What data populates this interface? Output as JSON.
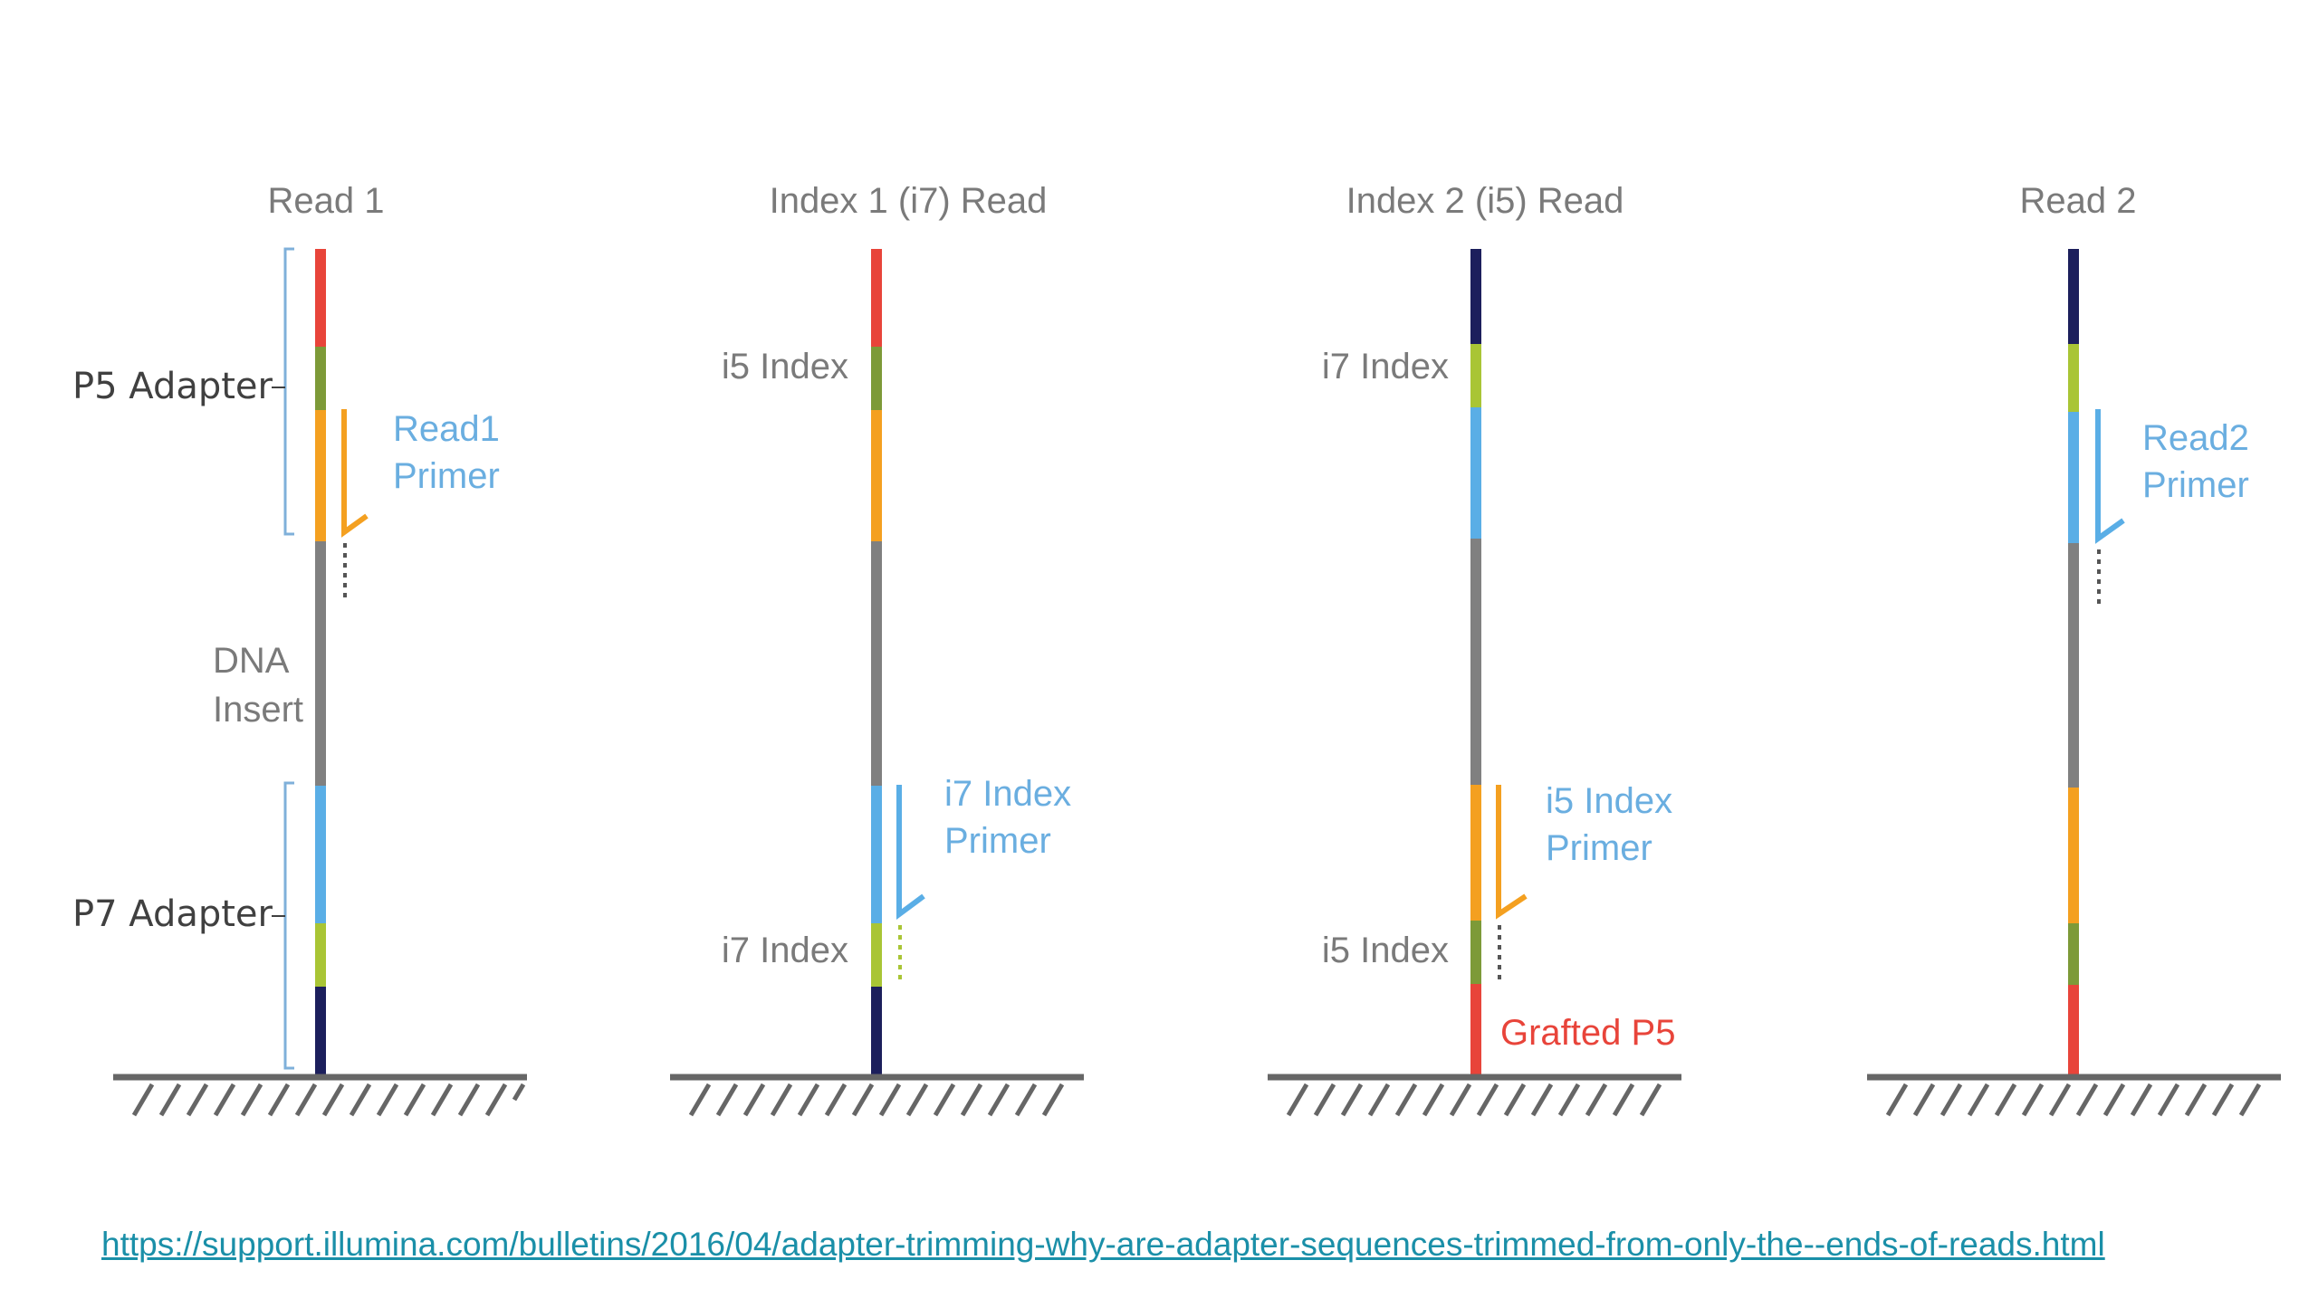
{
  "panels": [
    {
      "title": "Read 1",
      "side_labels": {
        "p5_adapter": "P5 Adapter",
        "dna_insert": [
          "DNA",
          "Insert"
        ],
        "p7_adapter": "P7 Adapter"
      },
      "primer": [
        "Read1",
        "Primer"
      ]
    },
    {
      "title": "Index 1 (i7) Read",
      "upper_index": "i5 Index",
      "lower_index": "i7 Index",
      "primer": [
        "i7 Index",
        "Primer"
      ]
    },
    {
      "title": "Index 2 (i5) Read",
      "upper_index": "i7 Index",
      "lower_index": "i5 Index",
      "primer": [
        "i5 Index",
        "Primer"
      ],
      "grafted": "Grafted P5"
    },
    {
      "title": "Read 2",
      "primer": [
        "Read2",
        "Primer"
      ]
    }
  ],
  "segment_colors": {
    "red": "#e8443a",
    "olive": "#7d9a38",
    "lime": "#a9c535",
    "orange": "#f4a020",
    "gray": "#808080",
    "blue": "#5aaee6",
    "navy": "#1c1f5c"
  },
  "source_url": "https://support.illumina.com/bulletins/2016/04/adapter-trimming-why-are-adapter-sequences-trimmed-from-only-the--ends-of-reads.html"
}
